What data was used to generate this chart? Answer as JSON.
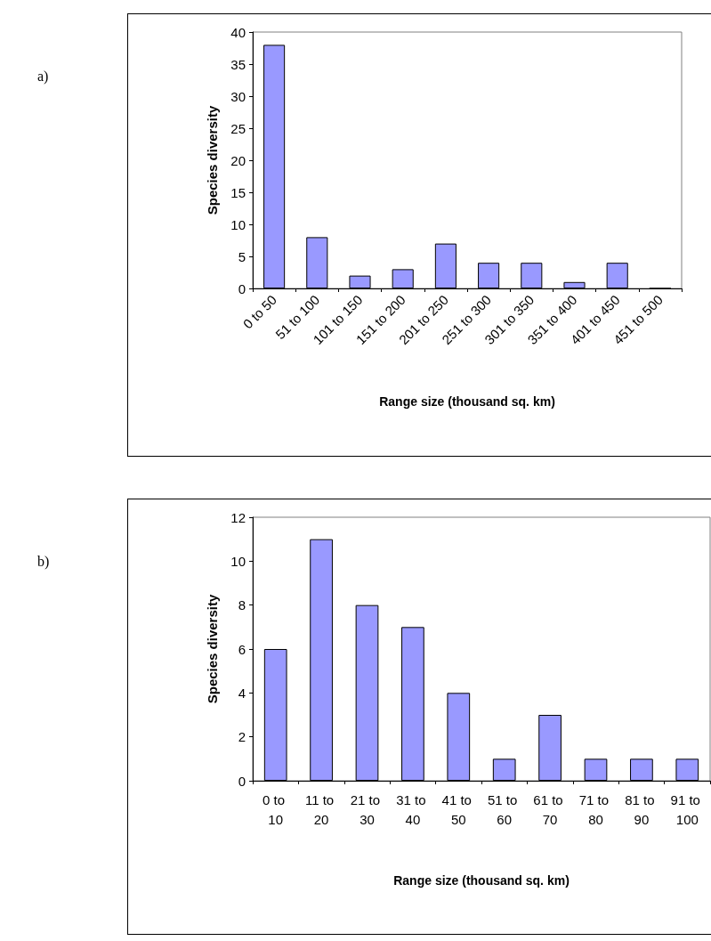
{
  "chart_data": [
    {
      "type": "bar",
      "xlabel": "Range size (thousand sq. km)",
      "ylabel": "Species diversity",
      "annotations": [
        "a)"
      ],
      "categories": [
        "0 to 50",
        "51 to 100",
        "101 to 150",
        "151 to 200",
        "201 to 250",
        "251 to 300",
        "301 to 350",
        "351 to 400",
        "401 to 450",
        "451 to 500"
      ],
      "values": [
        38,
        8,
        2,
        3,
        7,
        4,
        4,
        1,
        4,
        0
      ],
      "color": "#9999ff",
      "ylim": [
        0,
        40
      ],
      "yticks": [
        0,
        5,
        10,
        15,
        20,
        25,
        30,
        35,
        40
      ],
      "grid": false
    },
    {
      "type": "bar",
      "xlabel": "Range size (thousand sq. km)",
      "ylabel": "Species diversity",
      "annotations": [
        "b)"
      ],
      "categories": [
        "0 to 10",
        "11 to 20",
        "21 to 30",
        "31 to 40",
        "41 to 50",
        "51 to 60",
        "61 to 70",
        "71 to 80",
        "81 to 90",
        "91 to 100"
      ],
      "values": [
        6,
        11,
        8,
        7,
        4,
        1,
        3,
        1,
        1,
        1
      ],
      "color": "#9999ff",
      "ylim": [
        0,
        12
      ],
      "yticks": [
        0,
        2,
        4,
        6,
        8,
        10,
        12
      ],
      "grid": false
    }
  ]
}
